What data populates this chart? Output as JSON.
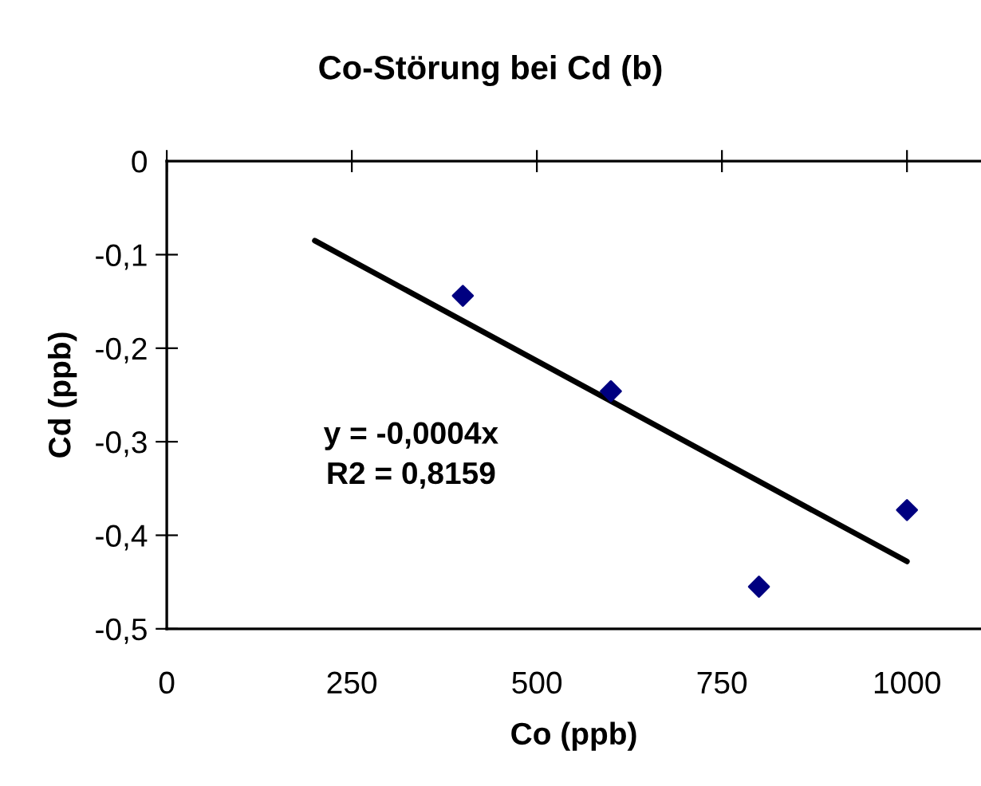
{
  "chart_data": {
    "type": "scatter",
    "title": "Co-Störung bei Cd (b)",
    "xlabel": "Co (ppb)",
    "ylabel": "Cd (ppb)",
    "x": [
      400,
      600,
      800,
      1000
    ],
    "series": [
      {
        "color": "#000080",
        "marker": "diamond",
        "values": [
          -0.144,
          -0.246,
          -0.455,
          -0.373
        ]
      },
      {
        "type": "line",
        "color": "#000000",
        "marker": "none",
        "line_style": "solid",
        "x": [
          200,
          1000
        ],
        "values": [
          -0.085,
          -0.428
        ]
      }
    ],
    "xlim": [
      0,
      1100
    ],
    "xticks": [
      0,
      250,
      500,
      750,
      1000
    ],
    "ylim": [
      -0.5,
      0
    ],
    "yticks": [
      {
        "value": -0.5,
        "label": "-0,5"
      },
      {
        "value": -0.4,
        "label": "-0,4"
      },
      {
        "value": -0.3,
        "label": "-0,3"
      },
      {
        "value": -0.2,
        "label": "-0,2"
      },
      {
        "value": -0.1,
        "label": "-0,1"
      },
      0
    ],
    "annotations": [
      "y = -0,0004x\nR2 = 0,8159"
    ],
    "grid": false,
    "legend": false
  }
}
